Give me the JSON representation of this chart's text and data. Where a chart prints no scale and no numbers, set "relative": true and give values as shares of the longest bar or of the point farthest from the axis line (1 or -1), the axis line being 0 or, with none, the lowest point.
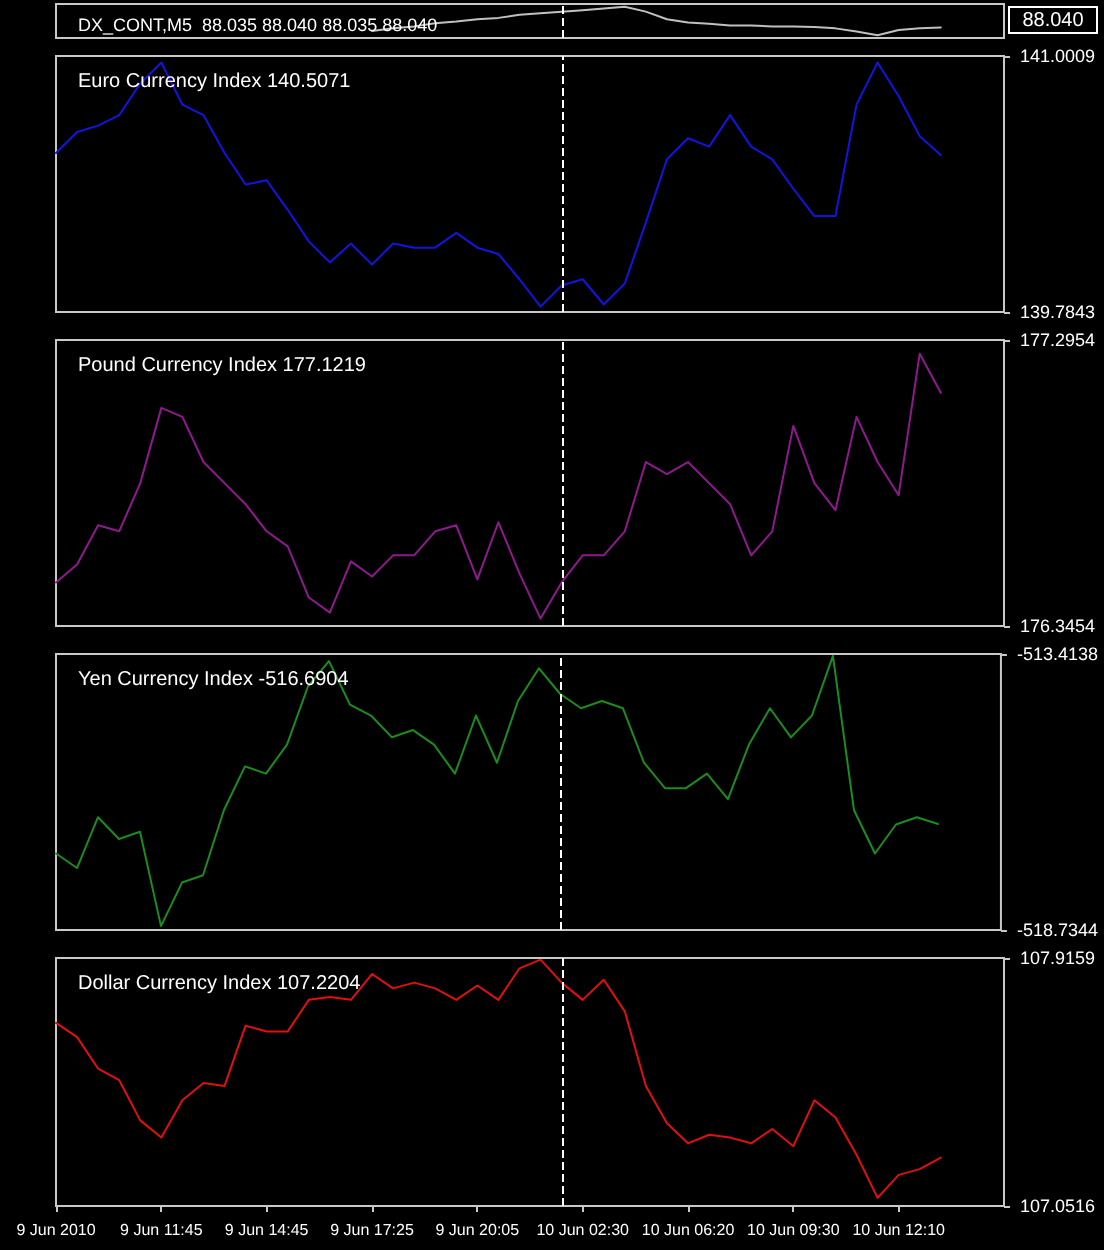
{
  "chart_data": [
    {
      "type": "line",
      "title": "DX_CONT,M5  88.035 88.040 88.035 88.040",
      "relative": true,
      "tick_labels": false,
      "annotations": [
        "88.040"
      ],
      "categories": [
        null,
        null,
        null,
        null,
        null,
        null,
        null,
        null,
        null,
        null,
        null,
        null,
        null,
        null,
        null,
        null,
        null,
        null,
        null,
        null,
        null,
        null,
        null,
        null,
        null,
        null,
        null,
        null,
        null,
        null,
        null,
        null,
        null,
        null,
        null,
        null,
        null,
        null,
        null,
        null,
        null,
        null,
        null,
        null,
        null,
        null
      ],
      "series": [
        {
          "color": "#c0c0c0",
          "values": [
            null,
            null,
            null,
            null,
            null,
            null,
            null,
            null,
            null,
            null,
            null,
            null,
            null,
            null,
            null,
            0.15,
            0.24,
            0.31,
            0.42,
            0.48,
            0.56,
            0.61,
            0.72,
            0.77,
            0.83,
            0.88,
            0.94,
            1,
            0.83,
            0.56,
            0.45,
            0.4,
            0.34,
            0.34,
            0.31,
            0.31,
            0.29,
            0.24,
            0.13,
            0,
            0.18,
            0.24,
            0.27,
            null,
            null,
            null
          ]
        }
      ]
    },
    {
      "type": "line",
      "title": "Euro Currency Index 140.5071",
      "tick_labels": "y",
      "ylim": [
        139.7843,
        141.0009
      ],
      "yticks": [
        139.7843,
        141.0009
      ],
      "categories": [
        null,
        null,
        null,
        null,
        null,
        null,
        null,
        null,
        null,
        null,
        null,
        null,
        null,
        null,
        null,
        null,
        null,
        null,
        null,
        null,
        null,
        null,
        null,
        null,
        null,
        null,
        null,
        null,
        null,
        null,
        null,
        null,
        null,
        null,
        null,
        null,
        null,
        null,
        null,
        null,
        null,
        null,
        null,
        null,
        null,
        null
      ],
      "series": [
        {
          "color": "#1414e0",
          "values": [
            140.54,
            140.64,
            140.67,
            140.72,
            140.87,
            140.97,
            140.77,
            140.72,
            140.54,
            140.39,
            140.41,
            140.27,
            140.12,
            140.02,
            140.11,
            140.01,
            140.11,
            140.09,
            140.09,
            140.16,
            140.09,
            140.06,
            139.94,
            139.81,
            139.91,
            139.94,
            139.82,
            139.92,
            140.21,
            140.51,
            140.61,
            140.57,
            140.72,
            140.57,
            140.51,
            140.37,
            140.24,
            140.24,
            140.77,
            140.97,
            140.81,
            140.62,
            140.53,
            null,
            null,
            null
          ]
        }
      ]
    },
    {
      "type": "line",
      "title": "Pound Currency Index 177.1219",
      "tick_labels": "y",
      "ylim": [
        176.3454,
        177.2954
      ],
      "yticks": [
        176.3454,
        177.2954
      ],
      "categories": [
        null,
        null,
        null,
        null,
        null,
        null,
        null,
        null,
        null,
        null,
        null,
        null,
        null,
        null,
        null,
        null,
        null,
        null,
        null,
        null,
        null,
        null,
        null,
        null,
        null,
        null,
        null,
        null,
        null,
        null,
        null,
        null,
        null,
        null,
        null,
        null,
        null,
        null,
        null,
        null,
        null,
        null,
        null,
        null,
        null,
        null
      ],
      "series": [
        {
          "color": "#8e1a8e",
          "values": [
            176.49,
            176.55,
            176.68,
            176.66,
            176.82,
            177.07,
            177.04,
            176.89,
            176.82,
            176.75,
            176.66,
            176.61,
            176.44,
            176.39,
            176.56,
            176.51,
            176.58,
            176.58,
            176.66,
            176.68,
            176.5,
            176.69,
            176.52,
            176.37,
            176.49,
            176.58,
            176.58,
            176.66,
            176.89,
            176.85,
            176.89,
            176.82,
            176.75,
            176.58,
            176.66,
            177.01,
            176.82,
            176.73,
            177.04,
            176.89,
            176.78,
            177.25,
            177.12,
            null,
            null,
            null
          ]
        }
      ]
    },
    {
      "type": "line",
      "title": "Yen Currency Index -516.6904",
      "tick_labels": "y",
      "ylim": [
        -518.7344,
        -513.4138
      ],
      "yticks": [
        -518.7344,
        -513.4138
      ],
      "categories": [
        null,
        null,
        null,
        null,
        null,
        null,
        null,
        null,
        null,
        null,
        null,
        null,
        null,
        null,
        null,
        null,
        null,
        null,
        null,
        null,
        null,
        null,
        null,
        null,
        null,
        null,
        null,
        null,
        null,
        null,
        null,
        null,
        null,
        null,
        null,
        null,
        null,
        null,
        null,
        null,
        null,
        null,
        null,
        null,
        null,
        null
      ],
      "series": [
        {
          "color": "#1c8c1c",
          "values": [
            -517.26,
            -517.54,
            -516.56,
            -516.98,
            -516.84,
            -518.66,
            -517.82,
            -517.68,
            -516.42,
            -515.58,
            -515.72,
            -515.16,
            -514.04,
            -513.55,
            -514.39,
            -514.6,
            -515.02,
            -514.88,
            -515.16,
            -515.72,
            -514.6,
            -515.51,
            -514.32,
            -513.69,
            -514.18,
            -514.46,
            -514.32,
            -514.46,
            -515.51,
            -516.0,
            -516.0,
            -515.72,
            -516.21,
            -515.16,
            -514.46,
            -515.02,
            -514.6,
            -513.45,
            -516.42,
            -517.26,
            -516.7,
            -516.56,
            -516.69,
            null,
            null,
            null
          ]
        }
      ]
    },
    {
      "type": "line",
      "title": "Dollar Currency Index 107.2204",
      "ylim": [
        107.0516,
        107.9159
      ],
      "yticks": [
        107.0516,
        107.9159
      ],
      "categories": [
        "9 Jun 2010",
        null,
        null,
        null,
        null,
        "9 Jun 11:45",
        null,
        null,
        null,
        null,
        "9 Jun 14:45",
        null,
        null,
        null,
        null,
        "9 Jun 17:25",
        null,
        null,
        null,
        null,
        "9 Jun 20:05",
        null,
        null,
        null,
        null,
        "10 Jun 02:30",
        null,
        null,
        null,
        null,
        "10 Jun 06:20",
        null,
        null,
        null,
        null,
        "10 Jun 09:30",
        null,
        null,
        null,
        null,
        "10 Jun 12:10",
        null,
        null,
        null,
        null,
        null
      ],
      "series": [
        {
          "color": "#e01010",
          "values": [
            107.69,
            107.64,
            107.53,
            107.49,
            107.35,
            107.29,
            107.42,
            107.48,
            107.47,
            107.68,
            107.66,
            107.66,
            107.77,
            107.78,
            107.77,
            107.86,
            107.81,
            107.83,
            107.81,
            107.77,
            107.82,
            107.77,
            107.88,
            107.91,
            107.83,
            107.77,
            107.84,
            107.73,
            107.47,
            107.34,
            107.27,
            107.3,
            107.29,
            107.27,
            107.32,
            107.26,
            107.42,
            107.36,
            107.23,
            107.08,
            107.16,
            107.18,
            107.22,
            null,
            null,
            null
          ]
        }
      ]
    }
  ]
}
